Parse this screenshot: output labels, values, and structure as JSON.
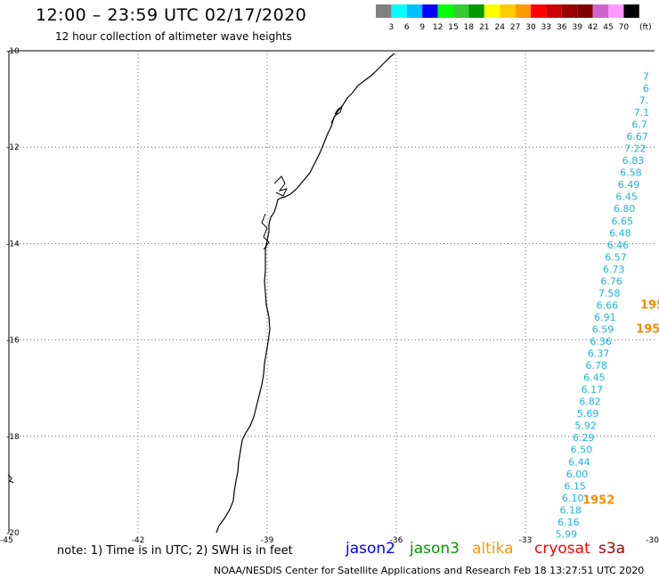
{
  "header": {
    "title": "12:00 – 23:59 UTC 02/17/2020",
    "subtitle": "12 hour collection of altimeter wave heights"
  },
  "legend": {
    "colors": [
      "#808080",
      "#00ffff",
      "#00bfff",
      "#0000ff",
      "#00ff00",
      "#33cc33",
      "#009900",
      "#ffff00",
      "#ffcc00",
      "#ff9900",
      "#ff0000",
      "#cc0000",
      "#990000",
      "#800000",
      "#cc66cc",
      "#ff99ff",
      "#000000"
    ],
    "labels": [
      "3",
      "6",
      "9",
      "12",
      "15",
      "18",
      "21",
      "24",
      "27",
      "30",
      "33",
      "36",
      "39",
      "42",
      "45",
      "70"
    ],
    "unit": "(ft)"
  },
  "axes": {
    "lat_labels": [
      "-10",
      "-12",
      "-14",
      "-16",
      "-18",
      "-20"
    ],
    "lon_labels": [
      "-45",
      "-42",
      "-39",
      "-36",
      "-33",
      "-30"
    ]
  },
  "chart_data": {
    "type": "scatter",
    "title": "12:00 – 23:59 UTC 02/17/2020",
    "xlim": [
      -45,
      -30
    ],
    "ylim": [
      -20,
      -10
    ],
    "grid": true,
    "series": [
      {
        "name": "",
        "color": "#1fb5d6",
        "points": [
          {
            "lon": -30.2,
            "lat": -10.6,
            "text": "7"
          },
          {
            "lon": -30.2,
            "lat": -10.85,
            "text": "6"
          },
          {
            "lon": -30.25,
            "lat": -11.1,
            "text": "7."
          },
          {
            "lon": -30.3,
            "lat": -11.35,
            "text": "7.1"
          },
          {
            "lon": -30.35,
            "lat": -11.6,
            "text": "6.7"
          },
          {
            "lon": -30.4,
            "lat": -11.85,
            "text": "6.67"
          },
          {
            "lon": -30.45,
            "lat": -12.1,
            "text": "7.22"
          },
          {
            "lon": -30.5,
            "lat": -12.35,
            "text": "6.83"
          },
          {
            "lon": -30.55,
            "lat": -12.6,
            "text": "6.58"
          },
          {
            "lon": -30.6,
            "lat": -12.85,
            "text": "6.49"
          },
          {
            "lon": -30.65,
            "lat": -13.1,
            "text": "6.45"
          },
          {
            "lon": -30.7,
            "lat": -13.35,
            "text": "6.80"
          },
          {
            "lon": -30.75,
            "lat": -13.6,
            "text": "6.65"
          },
          {
            "lon": -30.8,
            "lat": -13.85,
            "text": "6.48"
          },
          {
            "lon": -30.85,
            "lat": -14.1,
            "text": "6.46"
          },
          {
            "lon": -30.9,
            "lat": -14.35,
            "text": "6.57"
          },
          {
            "lon": -30.95,
            "lat": -14.6,
            "text": "6.73"
          },
          {
            "lon": -31.0,
            "lat": -14.85,
            "text": "6.76"
          },
          {
            "lon": -31.05,
            "lat": -15.1,
            "text": "7.58"
          },
          {
            "lon": -31.1,
            "lat": -15.35,
            "text": "6.66"
          },
          {
            "lon": -31.15,
            "lat": -15.6,
            "text": "6.91"
          },
          {
            "lon": -31.2,
            "lat": -15.85,
            "text": "6.59"
          },
          {
            "lon": -31.25,
            "lat": -16.1,
            "text": "6.36"
          },
          {
            "lon": -31.3,
            "lat": -16.35,
            "text": "6.37"
          },
          {
            "lon": -31.35,
            "lat": -16.6,
            "text": "6.78"
          },
          {
            "lon": -31.4,
            "lat": -16.85,
            "text": "6.45"
          },
          {
            "lon": -31.45,
            "lat": -17.1,
            "text": "6.17"
          },
          {
            "lon": -31.5,
            "lat": -17.35,
            "text": "6.82"
          },
          {
            "lon": -31.55,
            "lat": -17.6,
            "text": "5.69"
          },
          {
            "lon": -31.6,
            "lat": -17.85,
            "text": "5.92"
          },
          {
            "lon": -31.65,
            "lat": -18.1,
            "text": "6.29"
          },
          {
            "lon": -31.7,
            "lat": -18.35,
            "text": "6.50"
          },
          {
            "lon": -31.75,
            "lat": -18.6,
            "text": "6.44"
          },
          {
            "lon": -31.8,
            "lat": -18.85,
            "text": "6.00"
          },
          {
            "lon": -31.85,
            "lat": -19.1,
            "text": "6.15"
          },
          {
            "lon": -31.9,
            "lat": -19.35,
            "text": "6.10"
          },
          {
            "lon": -31.95,
            "lat": -19.6,
            "text": "6.18"
          },
          {
            "lon": -32.0,
            "lat": -19.85,
            "text": "6.16"
          },
          {
            "lon": -32.05,
            "lat": -20.1,
            "text": "5.99"
          }
        ]
      },
      {
        "name": "",
        "color": "#f28c00",
        "points": [
          {
            "lon": -30.05,
            "lat": -15.35,
            "text": "195"
          },
          {
            "lon": -30.15,
            "lat": -15.85,
            "text": "195"
          },
          {
            "lon": -31.3,
            "lat": -19.4,
            "text": "1952"
          }
        ]
      }
    ]
  },
  "footer": {
    "note": "note: 1) Time is in UTC; 2) SWH is in feet",
    "satellites": [
      {
        "name": "jason2",
        "color": "#0000ff"
      },
      {
        "name": "jason3",
        "color": "#009900"
      },
      {
        "name": "altika",
        "color": "#ff9900"
      },
      {
        "name": "cryosat",
        "color": "#ff0000"
      },
      {
        "name": "s3a",
        "color": "#990000"
      }
    ],
    "credit": "NOAA/NESDIS Center for Satellite Applications and Research     Feb 18 13:27:51 UTC 2020"
  }
}
